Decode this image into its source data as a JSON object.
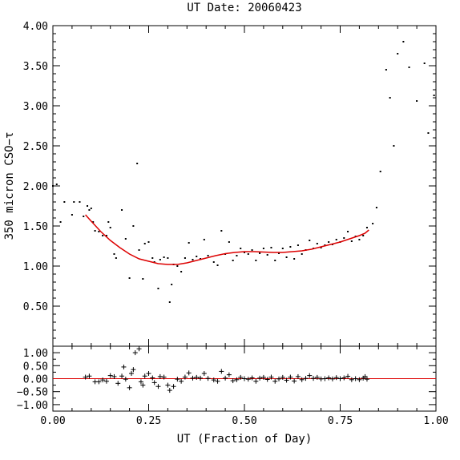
{
  "chart_data": {
    "type": "scatter",
    "title": "UT Date: 20060423",
    "xlabel": "UT (Fraction of Day)",
    "ylabel": "350 micron CSO−τ",
    "x_ticks": [
      "0.00",
      "0.25",
      "0.50",
      "0.75",
      "1.00"
    ],
    "xlim": [
      0,
      1
    ],
    "main": {
      "ylim": [
        0,
        4
      ],
      "y_ticks": [
        "0.50",
        "1.00",
        "1.50",
        "2.00",
        "2.50",
        "3.00",
        "3.50",
        "4.00"
      ],
      "points": [
        [
          0.0,
          2.0
        ],
        [
          0.01,
          2.02
        ],
        [
          0.02,
          1.55
        ],
        [
          0.03,
          1.8
        ],
        [
          0.05,
          1.64
        ],
        [
          0.055,
          1.8
        ],
        [
          0.07,
          1.8
        ],
        [
          0.08,
          1.62
        ],
        [
          0.09,
          1.75
        ],
        [
          0.095,
          1.7
        ],
        [
          0.1,
          1.72
        ],
        [
          0.105,
          1.55
        ],
        [
          0.11,
          1.44
        ],
        [
          0.12,
          1.43
        ],
        [
          0.13,
          1.38
        ],
        [
          0.14,
          1.38
        ],
        [
          0.145,
          1.55
        ],
        [
          0.15,
          1.48
        ],
        [
          0.16,
          1.15
        ],
        [
          0.165,
          1.1
        ],
        [
          0.18,
          1.7
        ],
        [
          0.19,
          1.34
        ],
        [
          0.2,
          0.85
        ],
        [
          0.21,
          1.5
        ],
        [
          0.22,
          2.28
        ],
        [
          0.225,
          1.2
        ],
        [
          0.235,
          0.84
        ],
        [
          0.24,
          1.28
        ],
        [
          0.25,
          1.3
        ],
        [
          0.26,
          1.1
        ],
        [
          0.265,
          1.05
        ],
        [
          0.275,
          0.72
        ],
        [
          0.28,
          1.08
        ],
        [
          0.29,
          1.11
        ],
        [
          0.3,
          1.1
        ],
        [
          0.305,
          0.55
        ],
        [
          0.31,
          0.77
        ],
        [
          0.315,
          1.02
        ],
        [
          0.325,
          1.0
        ],
        [
          0.335,
          0.93
        ],
        [
          0.345,
          1.1
        ],
        [
          0.355,
          1.29
        ],
        [
          0.365,
          1.08
        ],
        [
          0.375,
          1.12
        ],
        [
          0.385,
          1.09
        ],
        [
          0.395,
          1.33
        ],
        [
          0.405,
          1.13
        ],
        [
          0.42,
          1.05
        ],
        [
          0.43,
          1.01
        ],
        [
          0.44,
          1.44
        ],
        [
          0.45,
          1.15
        ],
        [
          0.46,
          1.3
        ],
        [
          0.47,
          1.07
        ],
        [
          0.48,
          1.13
        ],
        [
          0.49,
          1.22
        ],
        [
          0.5,
          1.17
        ],
        [
          0.51,
          1.15
        ],
        [
          0.52,
          1.2
        ],
        [
          0.53,
          1.07
        ],
        [
          0.54,
          1.16
        ],
        [
          0.55,
          1.22
        ],
        [
          0.56,
          1.14
        ],
        [
          0.57,
          1.23
        ],
        [
          0.58,
          1.07
        ],
        [
          0.59,
          1.16
        ],
        [
          0.6,
          1.22
        ],
        [
          0.61,
          1.11
        ],
        [
          0.62,
          1.24
        ],
        [
          0.63,
          1.09
        ],
        [
          0.64,
          1.26
        ],
        [
          0.65,
          1.15
        ],
        [
          0.66,
          1.2
        ],
        [
          0.67,
          1.32
        ],
        [
          0.68,
          1.22
        ],
        [
          0.69,
          1.28
        ],
        [
          0.7,
          1.23
        ],
        [
          0.71,
          1.26
        ],
        [
          0.72,
          1.3
        ],
        [
          0.73,
          1.27
        ],
        [
          0.74,
          1.33
        ],
        [
          0.75,
          1.3
        ],
        [
          0.76,
          1.35
        ],
        [
          0.77,
          1.43
        ],
        [
          0.78,
          1.31
        ],
        [
          0.79,
          1.37
        ],
        [
          0.8,
          1.33
        ],
        [
          0.81,
          1.38
        ],
        [
          0.82,
          1.48
        ],
        [
          0.835,
          1.53
        ],
        [
          0.845,
          1.73
        ],
        [
          0.855,
          2.18
        ],
        [
          0.87,
          3.45
        ],
        [
          0.88,
          3.1
        ],
        [
          0.89,
          2.5
        ],
        [
          0.9,
          3.65
        ],
        [
          0.915,
          3.8
        ],
        [
          0.93,
          3.48
        ],
        [
          0.95,
          3.06
        ],
        [
          0.97,
          3.53
        ],
        [
          0.98,
          2.66
        ],
        [
          0.995,
          3.13
        ]
      ],
      "fit": [
        [
          0.085,
          1.64
        ],
        [
          0.1,
          1.56
        ],
        [
          0.125,
          1.43
        ],
        [
          0.15,
          1.32
        ],
        [
          0.175,
          1.23
        ],
        [
          0.2,
          1.15
        ],
        [
          0.225,
          1.09
        ],
        [
          0.25,
          1.06
        ],
        [
          0.275,
          1.03
        ],
        [
          0.3,
          1.02
        ],
        [
          0.325,
          1.02
        ],
        [
          0.35,
          1.04
        ],
        [
          0.375,
          1.07
        ],
        [
          0.4,
          1.1
        ],
        [
          0.425,
          1.13
        ],
        [
          0.45,
          1.155
        ],
        [
          0.475,
          1.17
        ],
        [
          0.5,
          1.18
        ],
        [
          0.525,
          1.18
        ],
        [
          0.55,
          1.175
        ],
        [
          0.575,
          1.17
        ],
        [
          0.6,
          1.17
        ],
        [
          0.625,
          1.18
        ],
        [
          0.65,
          1.19
        ],
        [
          0.675,
          1.21
        ],
        [
          0.7,
          1.24
        ],
        [
          0.725,
          1.27
        ],
        [
          0.75,
          1.3
        ],
        [
          0.775,
          1.34
        ],
        [
          0.8,
          1.38
        ],
        [
          0.815,
          1.41
        ],
        [
          0.825,
          1.45
        ]
      ]
    },
    "residuals": {
      "ylim": [
        -1.25,
        1.25
      ],
      "y_ticks": [
        "−1.00",
        "−0.50",
        "0.00",
        "0.50",
        "1.00"
      ],
      "y_tick_values": [
        -1,
        -0.5,
        0,
        0.5,
        1
      ],
      "points": [
        [
          0.085,
          0.06
        ],
        [
          0.095,
          0.1
        ],
        [
          0.11,
          -0.12
        ],
        [
          0.12,
          -0.12
        ],
        [
          0.13,
          -0.05
        ],
        [
          0.14,
          -0.1
        ],
        [
          0.15,
          0.12
        ],
        [
          0.16,
          0.08
        ],
        [
          0.17,
          -0.18
        ],
        [
          0.18,
          0.1
        ],
        [
          0.185,
          0.45
        ],
        [
          0.19,
          -0.02
        ],
        [
          0.2,
          -0.35
        ],
        [
          0.205,
          0.2
        ],
        [
          0.21,
          0.35
        ],
        [
          0.215,
          1.0
        ],
        [
          0.225,
          1.15
        ],
        [
          0.23,
          -0.12
        ],
        [
          0.235,
          -0.25
        ],
        [
          0.24,
          0.1
        ],
        [
          0.25,
          0.2
        ],
        [
          0.26,
          0.03
        ],
        [
          0.265,
          -0.15
        ],
        [
          0.275,
          -0.3
        ],
        [
          0.28,
          0.08
        ],
        [
          0.29,
          0.06
        ],
        [
          0.3,
          -0.25
        ],
        [
          0.305,
          -0.45
        ],
        [
          0.315,
          -0.3
        ],
        [
          0.325,
          -0.02
        ],
        [
          0.335,
          -0.1
        ],
        [
          0.345,
          0.06
        ],
        [
          0.355,
          0.22
        ],
        [
          0.365,
          0.02
        ],
        [
          0.375,
          0.05
        ],
        [
          0.385,
          0.02
        ],
        [
          0.395,
          0.2
        ],
        [
          0.405,
          0.01
        ],
        [
          0.42,
          -0.05
        ],
        [
          0.43,
          -0.1
        ],
        [
          0.44,
          0.28
        ],
        [
          0.45,
          0.02
        ],
        [
          0.46,
          0.15
        ],
        [
          0.47,
          -0.08
        ],
        [
          0.48,
          -0.04
        ],
        [
          0.49,
          0.05
        ],
        [
          0.5,
          0.0
        ],
        [
          0.51,
          -0.02
        ],
        [
          0.52,
          0.03
        ],
        [
          0.53,
          -0.1
        ],
        [
          0.54,
          0.02
        ],
        [
          0.55,
          0.05
        ],
        [
          0.56,
          -0.03
        ],
        [
          0.57,
          0.06
        ],
        [
          0.58,
          -0.1
        ],
        [
          0.59,
          -0.01
        ],
        [
          0.6,
          0.05
        ],
        [
          0.61,
          -0.06
        ],
        [
          0.62,
          0.06
        ],
        [
          0.63,
          -0.09
        ],
        [
          0.64,
          0.08
        ],
        [
          0.65,
          -0.04
        ],
        [
          0.66,
          0.01
        ],
        [
          0.67,
          0.12
        ],
        [
          0.68,
          0.01
        ],
        [
          0.69,
          0.05
        ],
        [
          0.7,
          -0.01
        ],
        [
          0.71,
          0.0
        ],
        [
          0.72,
          0.03
        ],
        [
          0.73,
          -0.01
        ],
        [
          0.74,
          0.04
        ],
        [
          0.75,
          0.0
        ],
        [
          0.76,
          0.03
        ],
        [
          0.77,
          0.09
        ],
        [
          0.78,
          -0.04
        ],
        [
          0.79,
          0.0
        ],
        [
          0.8,
          -0.04
        ],
        [
          0.81,
          0.02
        ],
        [
          0.815,
          0.08
        ],
        [
          0.82,
          -0.02
        ]
      ]
    },
    "colors": {
      "fit": "#dd0000",
      "zero_line": "#dd0000",
      "points": "#000000"
    }
  }
}
